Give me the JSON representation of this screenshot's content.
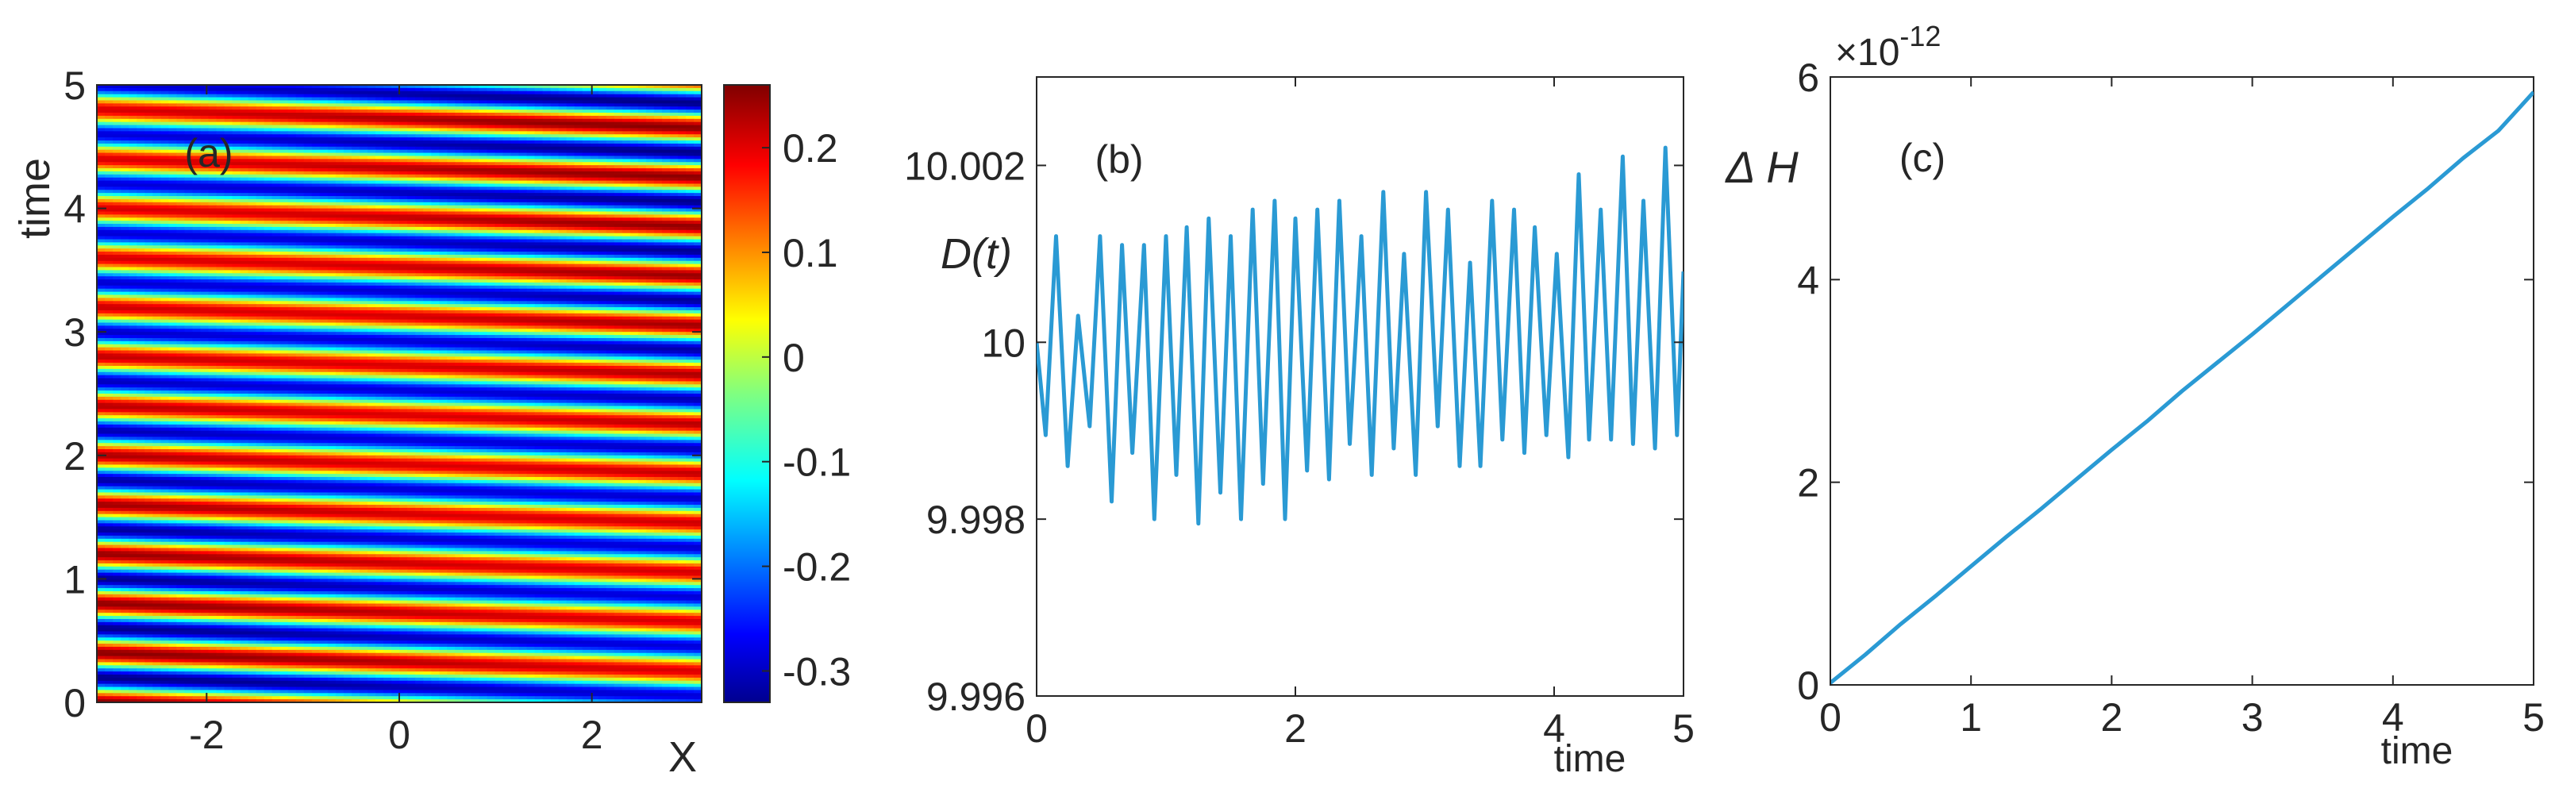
{
  "chart_data": [
    {
      "panel_label": "(a)",
      "type": "heatmap",
      "xlabel": "X",
      "ylabel": "time",
      "xlim": [
        -3.14,
        3.14
      ],
      "ylim": [
        0,
        5
      ],
      "xticks": [
        "-2",
        "0",
        "2"
      ],
      "xtick_values": [
        -2,
        0,
        2
      ],
      "yticks": [
        "0",
        "1",
        "2",
        "3",
        "4",
        "5"
      ],
      "ytick_values": [
        0,
        1,
        2,
        3,
        4,
        5
      ],
      "colorbar": {
        "range": [
          -0.33,
          0.26
        ],
        "ticks": [
          "-0.3",
          "-0.2",
          "-0.1",
          "0",
          "0.1",
          "0.2"
        ],
        "tick_values": [
          -0.3,
          -0.2,
          -0.1,
          0,
          0.1,
          0.2
        ],
        "colormap": "jet"
      },
      "field": {
        "amplitude": 0.29,
        "offset": -0.035,
        "stripe_count": 12.5,
        "x_drift_over_domain": 0.37
      }
    },
    {
      "panel_label": "(b)",
      "type": "line",
      "xlabel": "time",
      "ylabel": "D(t)",
      "xlim": [
        0,
        5
      ],
      "ylim": [
        9.996,
        10.003
      ],
      "xticks": [
        "0",
        "2",
        "4",
        "5"
      ],
      "xtick_values": [
        0,
        2,
        4,
        5
      ],
      "yticks": [
        "9.996",
        "9.998",
        "10",
        "10.002"
      ],
      "ytick_values": [
        9.996,
        9.998,
        10,
        10.002
      ],
      "grid": false,
      "color": "#2a9ad4",
      "series": [
        {
          "x": [
            0,
            0.07,
            0.15,
            0.24,
            0.32,
            0.41,
            0.49,
            0.58,
            0.66,
            0.74,
            0.83,
            0.91,
            1.0,
            1.08,
            1.16,
            1.25,
            1.33,
            1.42,
            1.5,
            1.58,
            1.67,
            1.75,
            1.84,
            1.92,
            2.0,
            2.09,
            2.17,
            2.26,
            2.34,
            2.42,
            2.51,
            2.59,
            2.68,
            2.76,
            2.84,
            2.93,
            3.01,
            3.1,
            3.18,
            3.27,
            3.35,
            3.43,
            3.52,
            3.6,
            3.69,
            3.77,
            3.85,
            3.94,
            4.02,
            4.11,
            4.19,
            4.27,
            4.36,
            4.44,
            4.53,
            4.61,
            4.69,
            4.78,
            4.86,
            4.95,
            5.0
          ],
          "y": [
            10.0,
            9.99895,
            10.0012,
            9.9986,
            10.0003,
            9.99905,
            10.0012,
            9.9982,
            10.0011,
            9.99875,
            10.0011,
            9.998,
            10.0012,
            9.9985,
            10.0013,
            9.99795,
            10.0014,
            9.9983,
            10.0012,
            9.998,
            10.0015,
            9.9984,
            10.0016,
            9.998,
            10.0014,
            9.99855,
            10.0015,
            9.99845,
            10.0016,
            9.99885,
            10.0012,
            9.9985,
            10.0017,
            9.9988,
            10.001,
            9.9985,
            10.0017,
            9.99905,
            10.0015,
            9.9986,
            10.0009,
            9.9986,
            10.0016,
            9.9989,
            10.0015,
            9.99875,
            10.0013,
            9.99895,
            10.001,
            9.9987,
            10.0019,
            9.9989,
            10.0015,
            9.9989,
            10.0021,
            9.99885,
            10.0016,
            9.9988,
            10.0022,
            9.99895,
            10.0008
          ]
        }
      ]
    },
    {
      "panel_label": "(c)",
      "type": "line",
      "xlabel": "time",
      "ylabel": "Δ H",
      "multiplier_label": "×10",
      "multiplier_exponent": "-12",
      "xlim": [
        0,
        5
      ],
      "ylim": [
        0,
        6
      ],
      "xticks": [
        "0",
        "1",
        "2",
        "3",
        "4",
        "5"
      ],
      "xtick_values": [
        0,
        1,
        2,
        3,
        4,
        5
      ],
      "yticks": [
        "0",
        "2",
        "4",
        "6"
      ],
      "ytick_values": [
        0,
        2,
        4,
        6
      ],
      "grid": false,
      "color": "#2a9ad4",
      "series": [
        {
          "x": [
            0,
            0.25,
            0.5,
            0.75,
            1.0,
            1.25,
            1.5,
            1.75,
            2.0,
            2.25,
            2.5,
            2.75,
            3.0,
            3.25,
            3.5,
            3.75,
            4.0,
            4.25,
            4.5,
            4.75,
            5.0
          ],
          "y": [
            0.02,
            0.3,
            0.6,
            0.88,
            1.17,
            1.46,
            1.74,
            2.03,
            2.32,
            2.6,
            2.9,
            3.18,
            3.46,
            3.75,
            4.04,
            4.33,
            4.62,
            4.9,
            5.2,
            5.47,
            5.85
          ]
        }
      ]
    }
  ]
}
